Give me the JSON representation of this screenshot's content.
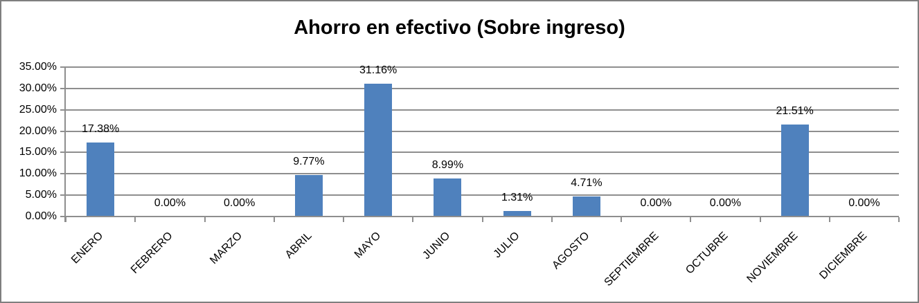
{
  "chart_data": {
    "type": "bar",
    "title": "Ahorro en efectivo (Sobre ingreso)",
    "categories": [
      "ENERO",
      "FEBRERO",
      "MARZO",
      "ABRIL",
      "MAYO",
      "JUNIO",
      "JULIO",
      "AGOSTO",
      "SEPTIEMBRE",
      "OCTUBRE",
      "NOVIEMBRE",
      "DICIEMBRE"
    ],
    "values": [
      17.38,
      0.0,
      0.0,
      9.77,
      31.16,
      8.99,
      1.31,
      4.71,
      0.0,
      0.0,
      21.51,
      0.0
    ],
    "data_labels": [
      "17.38%",
      "0.00%",
      "0.00%",
      "9.77%",
      "31.16%",
      "8.99%",
      "1.31%",
      "4.71%",
      "0.00%",
      "0.00%",
      "21.51%",
      "0.00%"
    ],
    "y_tick_labels": [
      "0.00%",
      "5.00%",
      "10.00%",
      "15.00%",
      "20.00%",
      "25.00%",
      "30.00%",
      "35.00%"
    ],
    "ylim": [
      0,
      35
    ],
    "y_step": 5,
    "xlabel": "",
    "ylabel": "",
    "grid": "horizontal",
    "legend": "none",
    "bar_color": "#4f81bd",
    "gridline_color": "#8e8e8e",
    "axis_color": "#8e8e8e",
    "title_color": "#000000",
    "label_color": "#000000"
  }
}
